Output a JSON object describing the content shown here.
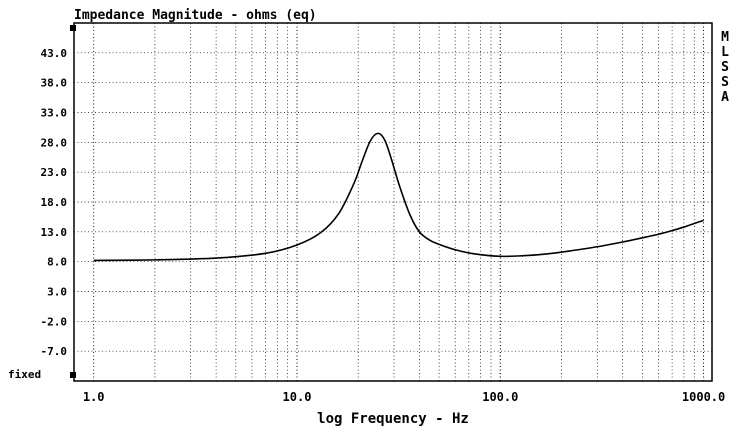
{
  "chart_data": {
    "type": "line",
    "title": "Impedance Magnitude - ohms (eq)",
    "xlabel": "log Frequency - Hz",
    "ylabel": "",
    "x_scale": "log",
    "xlim": [
      0.8,
      1100
    ],
    "ylim": [
      -12,
      48
    ],
    "grid": true,
    "x_ticks": [
      "1.0",
      "10.0",
      "100.0",
      "1000.0"
    ],
    "y_ticks": [
      "43.0",
      "38.0",
      "33.0",
      "28.0",
      "23.0",
      "18.0",
      "13.0",
      "8.0",
      "3.0",
      "-2.0",
      "-7.0"
    ],
    "corner_label": "fixed",
    "side_label": [
      "M",
      "L",
      "S",
      "S",
      "A"
    ],
    "series": [
      {
        "x": [
          1,
          2,
          4,
          7,
          10,
          13,
          16,
          19,
          21,
          23,
          25,
          27,
          29,
          32,
          36,
          40,
          45,
          50,
          60,
          75,
          100,
          130,
          170,
          220,
          300,
          400,
          500,
          600,
          700,
          800,
          900,
          1000
        ],
        "y": [
          8.2,
          8.3,
          8.6,
          9.4,
          10.8,
          12.8,
          16.0,
          21.0,
          25.0,
          28.3,
          29.5,
          28.4,
          25.4,
          20.6,
          15.8,
          13.0,
          11.6,
          10.9,
          10.0,
          9.3,
          8.9,
          9.0,
          9.3,
          9.8,
          10.5,
          11.3,
          12.0,
          12.6,
          13.2,
          13.8,
          14.4,
          14.9
        ]
      }
    ]
  }
}
